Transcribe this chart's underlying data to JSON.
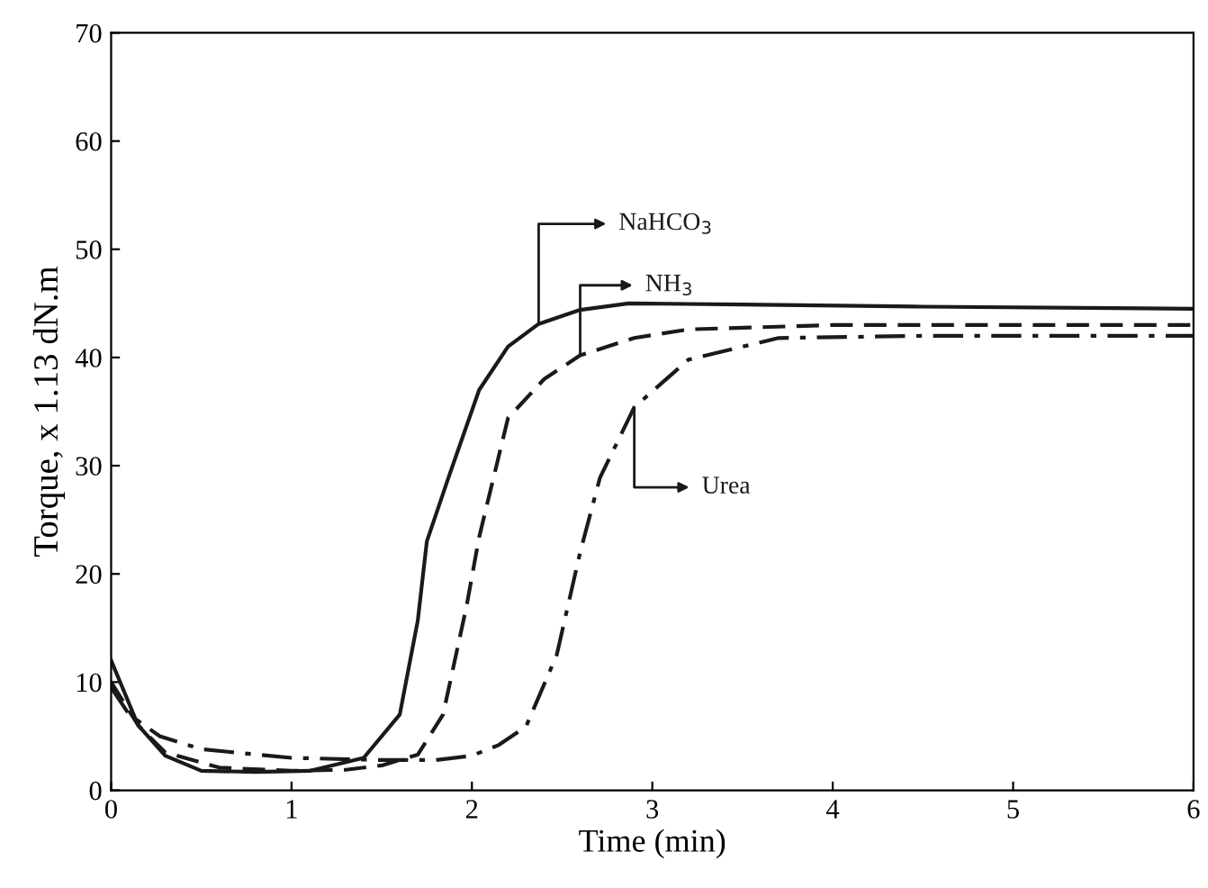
{
  "chart_data": {
    "type": "line",
    "xlabel": "Time (min)",
    "ylabel": "Torque, x 1.13 dN.m",
    "xlim": [
      0,
      6
    ],
    "ylim": [
      0,
      70
    ],
    "xticks": [
      0,
      1,
      2,
      3,
      4,
      5,
      6
    ],
    "yticks": [
      0,
      10,
      20,
      30,
      40,
      50,
      60,
      70
    ],
    "grid": false,
    "marker": "none",
    "legend": "center",
    "series": [
      {
        "name": "NaHCO$_{3}$",
        "color": "#1a1a1a",
        "line_style": "solid",
        "x": [
          0,
          0.15,
          0.3,
          0.5,
          0.8,
          1.1,
          1.4,
          1.6,
          1.7,
          1.75,
          1.87,
          2.04,
          2.2,
          2.37,
          2.6,
          2.87,
          3.5,
          4.5,
          6
        ],
        "values": [
          12,
          6,
          3.2,
          1.8,
          1.7,
          1.8,
          3,
          7,
          15.7,
          23,
          28.9,
          37,
          41,
          43.1,
          44.4,
          45,
          44.9,
          44.7,
          44.5
        ]
      },
      {
        "name": "NH$_{3}$",
        "color": "#1a1a1a",
        "line_style": "dashed",
        "x": [
          0,
          0.15,
          0.3,
          0.6,
          1.0,
          1.3,
          1.5,
          1.6,
          1.7,
          1.84,
          1.97,
          2.04,
          2.2,
          2.4,
          2.6,
          2.9,
          3.2,
          4.0,
          6
        ],
        "values": [
          10,
          6,
          3.5,
          2.1,
          1.8,
          1.9,
          2.3,
          2.8,
          3.3,
          7,
          17,
          23.4,
          34.4,
          38,
          40.2,
          41.8,
          42.6,
          43,
          43
        ]
      },
      {
        "name": "Urea",
        "color": "#1a1a1a",
        "line_style": "dashdot",
        "x": [
          0,
          0.1,
          0.27,
          0.5,
          1.0,
          1.5,
          1.8,
          2.0,
          2.15,
          2.3,
          2.47,
          2.6,
          2.71,
          2.9,
          3.2,
          3.7,
          4.5,
          6
        ],
        "values": [
          9.5,
          7,
          5,
          3.8,
          3.0,
          2.8,
          2.8,
          3.2,
          4.2,
          5.9,
          12.5,
          22,
          28.9,
          35.4,
          39.8,
          41.8,
          42,
          42
        ]
      }
    ]
  }
}
